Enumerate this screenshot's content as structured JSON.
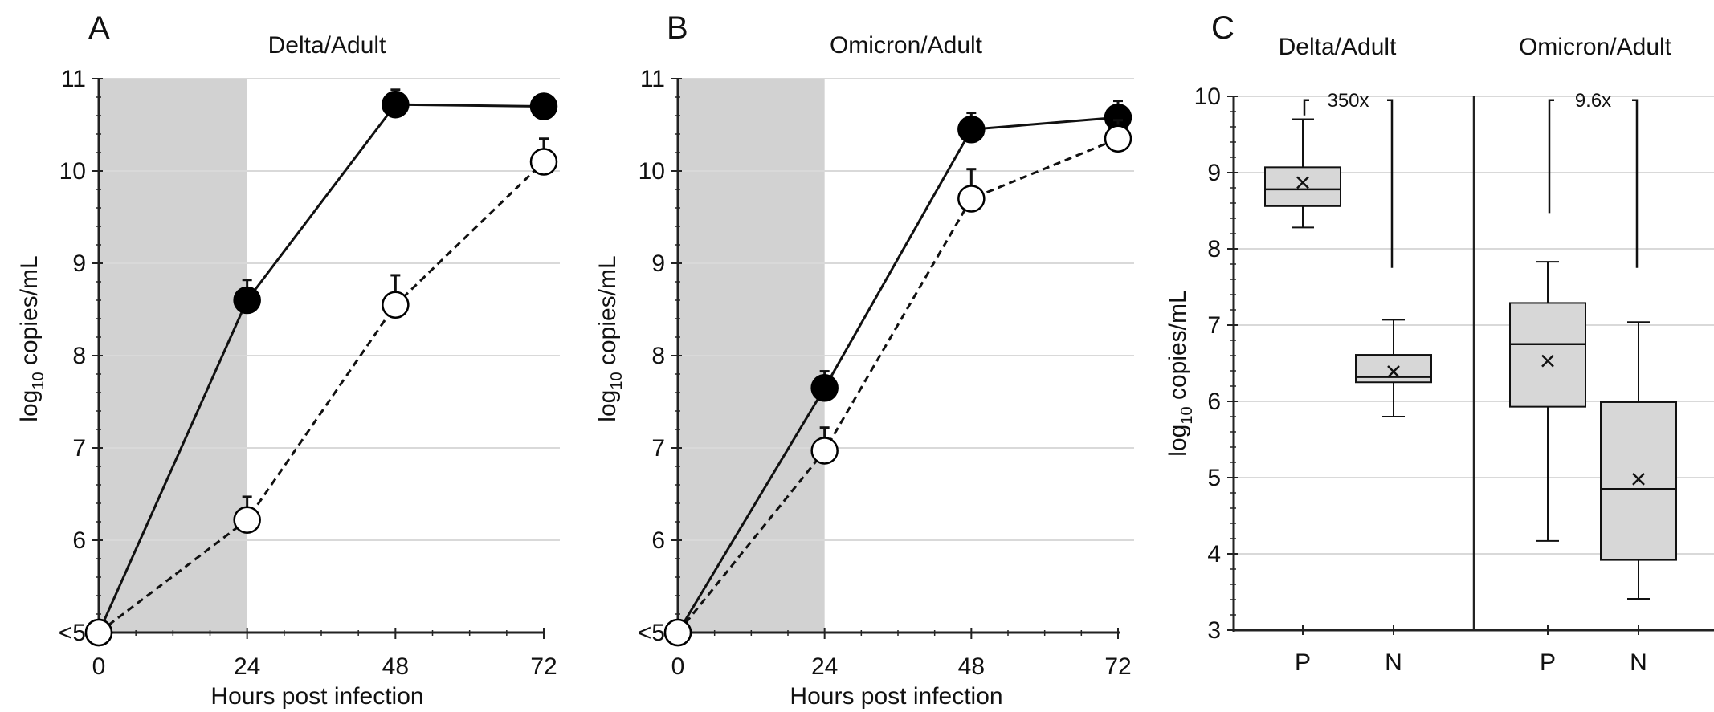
{
  "panels": [
    {
      "label": "A",
      "title": "Delta/Adult"
    },
    {
      "label": "B",
      "title": "Omicron/Adult"
    },
    {
      "label": "C"
    }
  ],
  "chart_data": [
    {
      "type": "line",
      "title": "Delta/Adult",
      "xlabel": "Hours post infection",
      "ylabel": "log10 copies/mL",
      "x": [
        0,
        24,
        48,
        72
      ],
      "xticks": [
        "0",
        "24",
        "48",
        "72"
      ],
      "yticks": [
        "<5",
        "6",
        "7",
        "8",
        "9",
        "10",
        "11"
      ],
      "ylim": [
        5,
        11
      ],
      "shaded_x_range": [
        0,
        24
      ],
      "grid": true,
      "series": [
        {
          "style": "solid line, filled circles",
          "values": [
            5.0,
            8.6,
            10.72,
            10.7
          ],
          "error_upper": [
            0,
            0.22,
            0.16,
            0.12
          ]
        },
        {
          "style": "dashed line, open circles",
          "values": [
            5.0,
            6.22,
            8.55,
            10.1
          ],
          "error_upper": [
            0,
            0.25,
            0.32,
            0.25
          ]
        }
      ]
    },
    {
      "type": "line",
      "title": "Omicron/Adult",
      "xlabel": "Hours post infection",
      "ylabel": "log10 copies/mL",
      "x": [
        0,
        24,
        48,
        72
      ],
      "xticks": [
        "0",
        "24",
        "48",
        "72"
      ],
      "yticks": [
        "<5",
        "6",
        "7",
        "8",
        "9",
        "10",
        "11"
      ],
      "ylim": [
        5,
        11
      ],
      "shaded_x_range": [
        0,
        24
      ],
      "grid": true,
      "series": [
        {
          "style": "solid line, filled circles",
          "values": [
            5.0,
            7.65,
            10.45,
            10.58
          ],
          "error_upper": [
            0,
            0.18,
            0.18,
            0.18
          ]
        },
        {
          "style": "dashed line, open circles",
          "values": [
            5.0,
            6.97,
            9.7,
            10.35
          ],
          "error_upper": [
            0,
            0.25,
            0.32,
            0.2
          ]
        }
      ]
    },
    {
      "type": "box",
      "ylabel": "log10 copies/mL",
      "ylim": [
        3,
        10
      ],
      "yticks": [
        "3",
        "4",
        "5",
        "6",
        "7",
        "8",
        "9",
        "10"
      ],
      "grid": true,
      "groups": [
        {
          "title": "Delta/Adult",
          "fold_change": "350x",
          "boxes": [
            {
              "category": "P",
              "min": 8.28,
              "q1": 8.56,
              "median": 8.78,
              "q3": 9.07,
              "max": 9.7,
              "mean": 8.87
            },
            {
              "category": "N",
              "min": 5.8,
              "q1": 6.25,
              "median": 6.32,
              "q3": 6.61,
              "max": 7.07,
              "mean": 6.39
            }
          ]
        },
        {
          "title": "Omicron/Adult",
          "fold_change": "9.6x",
          "boxes": [
            {
              "category": "P",
              "min": 4.17,
              "q1": 5.93,
              "median": 6.75,
              "q3": 7.29,
              "max": 7.83,
              "mean": 6.53
            },
            {
              "category": "N",
              "min": 3.41,
              "q1": 3.92,
              "median": 4.85,
              "q3": 5.99,
              "max": 7.04,
              "mean": 4.98
            }
          ]
        }
      ]
    }
  ]
}
